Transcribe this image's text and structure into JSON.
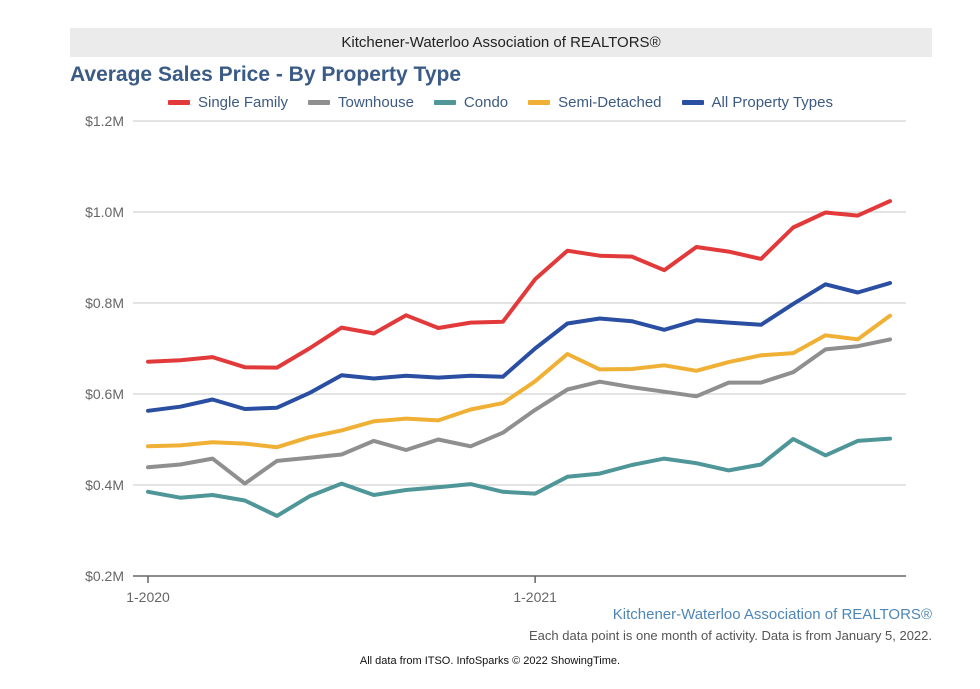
{
  "header": {
    "banner": "Kitchener-Waterloo Association of REALTORS®",
    "title": "Average Sales Price - By Property Type"
  },
  "chart_data": {
    "type": "line",
    "title": "Average Sales Price - By Property Type",
    "xlabel": "",
    "ylabel": "",
    "ylim": [
      0.2,
      1.2
    ],
    "y_ticks": [
      1.2,
      1.0,
      0.8,
      0.6,
      0.4,
      0.2
    ],
    "y_tick_labels": [
      "$1.2M",
      "$1.0M",
      "$0.8M",
      "$0.6M",
      "$0.4M",
      "$0.2M"
    ],
    "x_tick_labels": [
      {
        "index": 0,
        "label": "1-2020"
      },
      {
        "index": 12,
        "label": "1-2021"
      }
    ],
    "grid": true,
    "legend_position": "top",
    "x": [
      "1-2020",
      "2-2020",
      "3-2020",
      "4-2020",
      "5-2020",
      "6-2020",
      "7-2020",
      "8-2020",
      "9-2020",
      "10-2020",
      "11-2020",
      "12-2020",
      "1-2021",
      "2-2021",
      "3-2021",
      "4-2021",
      "5-2021",
      "6-2021",
      "7-2021",
      "8-2021",
      "9-2021",
      "10-2021",
      "11-2021",
      "12-2021"
    ],
    "series": [
      {
        "name": "Single Family",
        "color": "#e23a3a",
        "values": [
          0.671,
          0.674,
          0.681,
          0.659,
          0.658,
          0.7,
          0.746,
          0.733,
          0.773,
          0.745,
          0.757,
          0.759,
          0.852,
          0.915,
          0.904,
          0.902,
          0.872,
          0.923,
          0.913,
          0.897,
          0.966,
          0.999,
          0.992,
          1.024
        ]
      },
      {
        "name": "Townhouse",
        "color": "#8f8f8f",
        "values": [
          0.439,
          0.445,
          0.458,
          0.403,
          0.453,
          0.46,
          0.467,
          0.497,
          0.477,
          0.5,
          0.485,
          0.515,
          0.565,
          0.61,
          0.627,
          0.615,
          0.605,
          0.595,
          0.625,
          0.625,
          0.648,
          0.698,
          0.705,
          0.72
        ]
      },
      {
        "name": "Condo",
        "color": "#4f9698",
        "values": [
          0.385,
          0.372,
          0.378,
          0.366,
          0.332,
          0.375,
          0.403,
          0.378,
          0.389,
          0.395,
          0.402,
          0.385,
          0.381,
          0.418,
          0.425,
          0.444,
          0.458,
          0.448,
          0.432,
          0.445,
          0.501,
          0.465,
          0.497,
          0.502
        ]
      },
      {
        "name": "Semi-Detached",
        "color": "#f0b035",
        "values": [
          0.485,
          0.487,
          0.494,
          0.491,
          0.483,
          0.505,
          0.52,
          0.54,
          0.546,
          0.542,
          0.566,
          0.58,
          0.628,
          0.688,
          0.654,
          0.655,
          0.663,
          0.651,
          0.67,
          0.685,
          0.69,
          0.729,
          0.72,
          0.772
        ]
      },
      {
        "name": "All Property Types",
        "color": "#2a4ea1",
        "values": [
          0.563,
          0.572,
          0.588,
          0.567,
          0.57,
          0.602,
          0.641,
          0.634,
          0.64,
          0.636,
          0.64,
          0.638,
          0.7,
          0.755,
          0.766,
          0.76,
          0.741,
          0.762,
          0.757,
          0.752,
          0.798,
          0.841,
          0.823,
          0.844
        ]
      }
    ]
  },
  "source": {
    "org": "Kitchener-Waterloo Association of REALTORS®",
    "note": "Each data point is one month of activity. Data is from January 5, 2022."
  },
  "footer": "All data from ITSO. InfoSparks © 2022 ShowingTime."
}
